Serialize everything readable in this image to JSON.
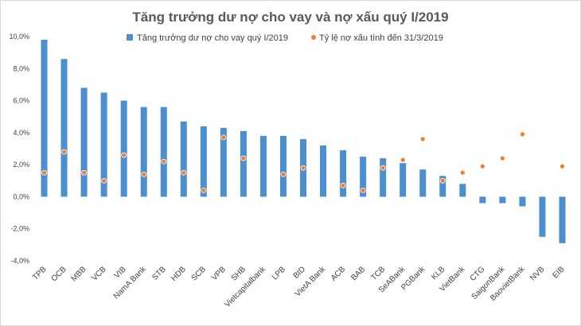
{
  "chart_data": {
    "type": "bar",
    "title": "Tăng trưởng dư nợ cho vay và nợ xấu quý I/2019",
    "xlabel": "",
    "ylabel": "",
    "ylim": [
      -4,
      10
    ],
    "yticks": [
      10,
      8,
      6,
      4,
      2,
      0,
      -2,
      -4
    ],
    "ytick_labels": [
      "10,0%",
      "8,0%",
      "6,0%",
      "4,0%",
      "2,0%",
      "0,0%",
      "-2,0%",
      "-4,0%"
    ],
    "legend_placement": "top",
    "grid": false,
    "categories": [
      "TPB",
      "OCB",
      "MBB",
      "VCB",
      "VIB",
      "NamA Bank",
      "STB",
      "HDB",
      "SCB",
      "VPB",
      "SHB",
      "Vietcapitalbank",
      "LPB",
      "BID",
      "VietA Bank",
      "ACB",
      "BAB",
      "TCB",
      "SeABank",
      "PGBank",
      "KLB",
      "VietBank",
      "CTG",
      "SaigonBank",
      "BaovietBank",
      "NVB",
      "EIB"
    ],
    "series": [
      {
        "name": "Tăng trưởng dư nợ cho vay quý I/2019",
        "kind": "bar",
        "color": "#4a8fd0",
        "values": [
          9.8,
          8.6,
          6.8,
          6.5,
          6.0,
          5.6,
          5.6,
          4.7,
          4.4,
          4.3,
          4.1,
          3.8,
          3.8,
          3.6,
          3.2,
          2.9,
          2.5,
          2.4,
          2.1,
          1.7,
          1.3,
          0.8,
          -0.4,
          -0.4,
          -0.6,
          -2.5,
          -2.9
        ]
      },
      {
        "name": "Tỷ lệ nợ xấu tính đến 31/3/2019",
        "kind": "scatter",
        "color": "#ed7d31",
        "values": [
          1.5,
          2.8,
          1.5,
          1.0,
          2.6,
          1.4,
          2.2,
          1.5,
          0.4,
          3.7,
          2.4,
          null,
          1.4,
          1.8,
          null,
          0.7,
          0.4,
          1.8,
          2.3,
          3.6,
          1.0,
          1.5,
          1.9,
          2.4,
          3.9,
          null,
          1.9
        ]
      }
    ]
  }
}
